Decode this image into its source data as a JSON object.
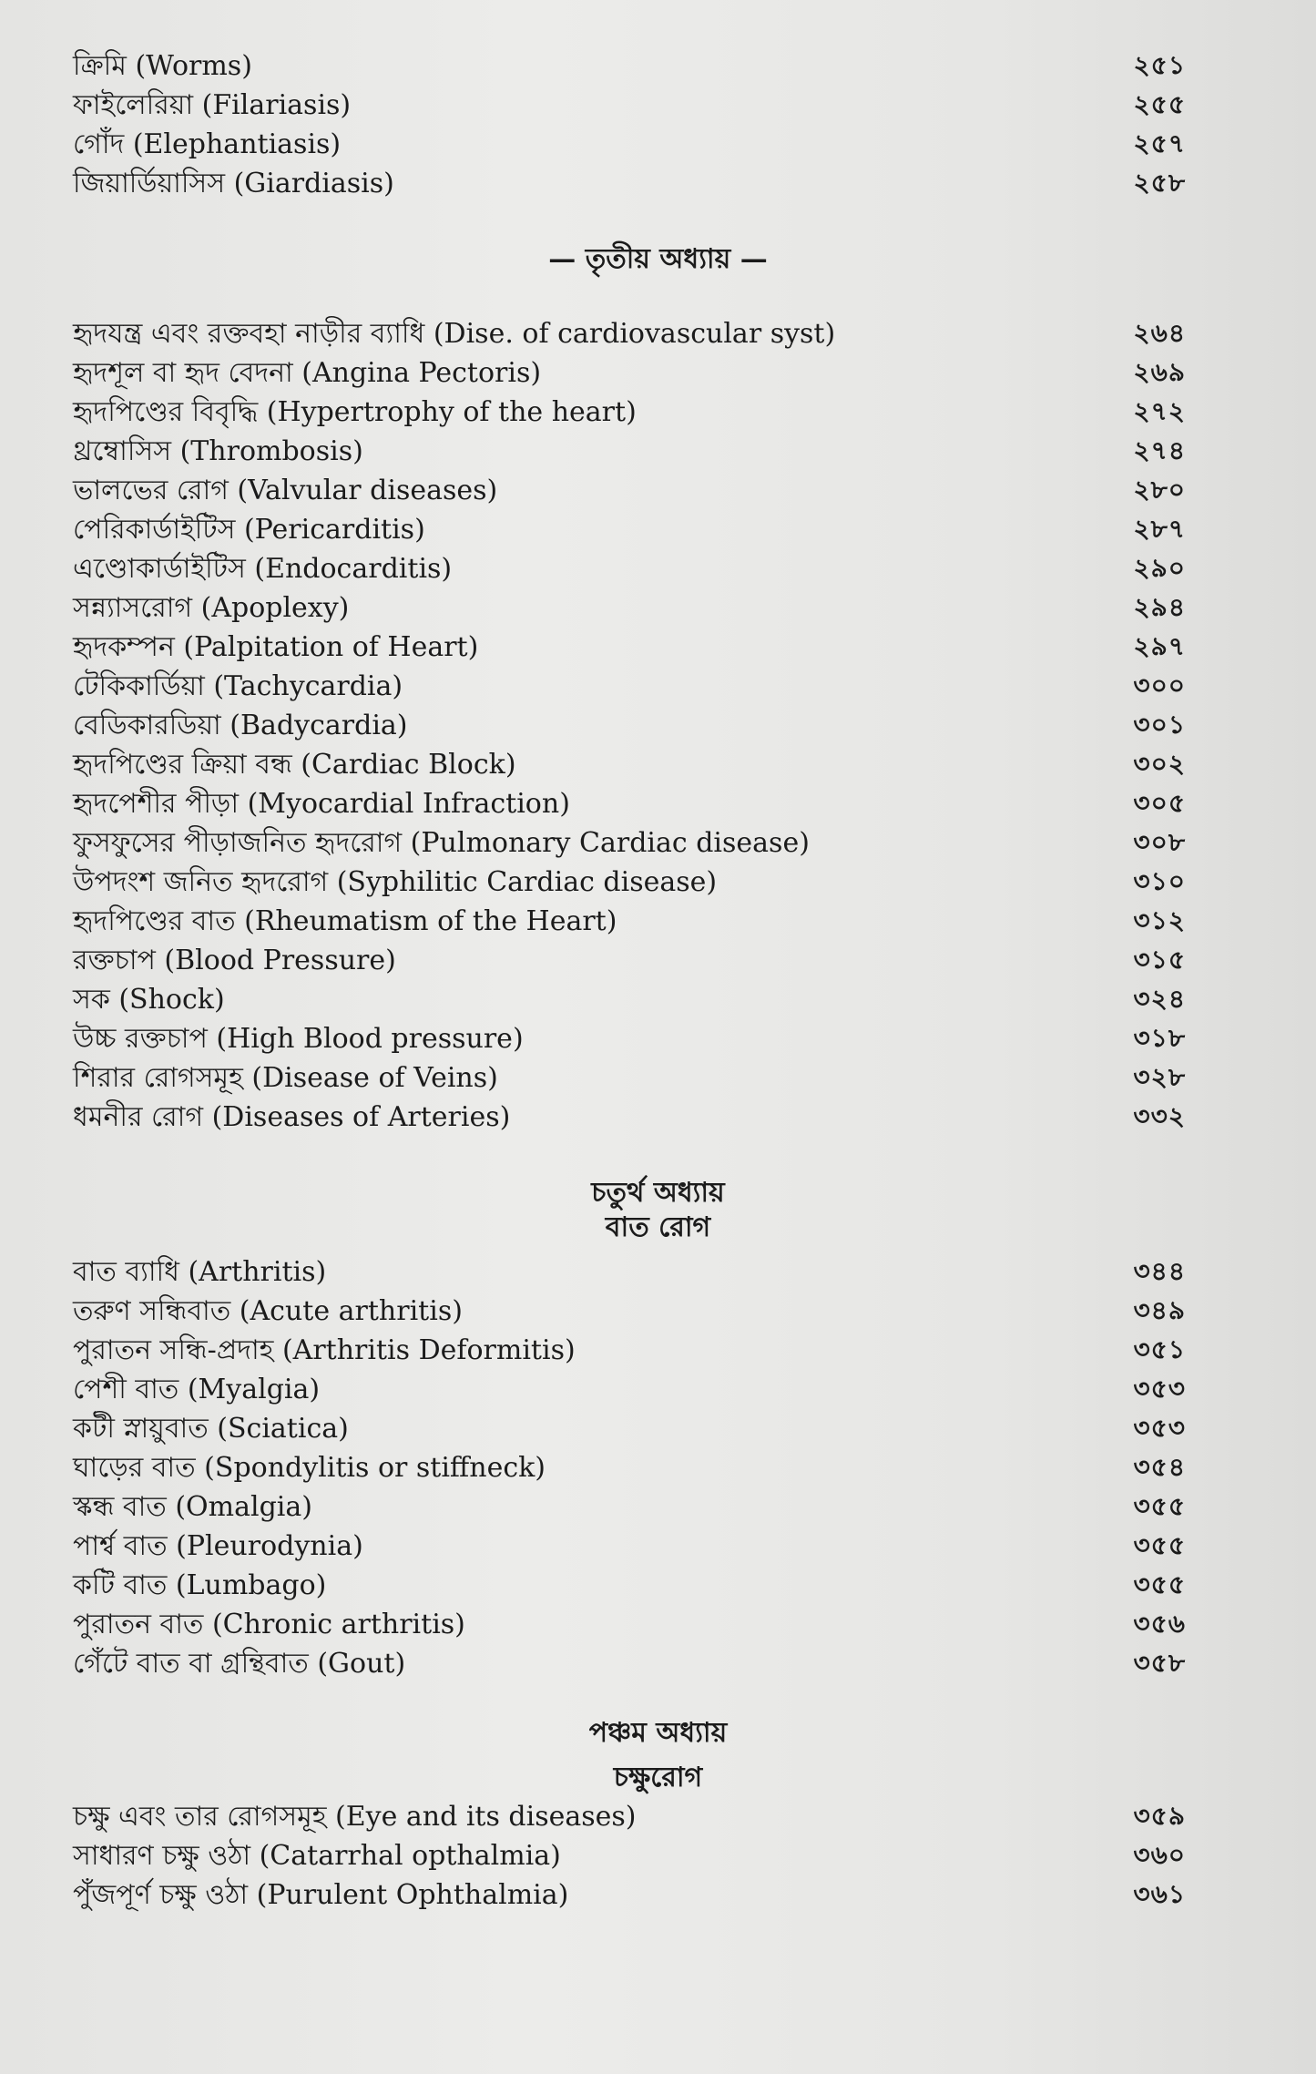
{
  "sections": [
    {
      "heading": [],
      "entries": [
        {
          "title": "ক্রিমি (Worms)",
          "page": "২৫১"
        },
        {
          "title": "ফাইলেরিয়া (Filariasis)",
          "page": "২৫৫"
        },
        {
          "title": "গোঁদ (Elephantiasis)",
          "page": "২৫৭"
        },
        {
          "title": "জিয়ার্ডিয়াসিস (Giardiasis)",
          "page": "২৫৮"
        }
      ]
    },
    {
      "heading": [
        "— তৃতীয় অধ্যায় —"
      ],
      "entries": [
        {
          "title": "হৃদযন্ত্র এবং রক্তবহা নাড়ীর ব্যাধি (Dise. of cardiovascular syst)",
          "page": "২৬৪"
        },
        {
          "title": "হৃদশূল বা হৃদ বেদনা (Angina Pectoris)",
          "page": "২৬৯"
        },
        {
          "title": "হৃদপিণ্ডের বিবৃদ্ধি (Hypertrophy of the heart)",
          "page": "২৭২"
        },
        {
          "title": "থ্রম্বোসিস (Thrombosis)",
          "page": "২৭৪"
        },
        {
          "title": "ভালভের রোগ (Valvular diseases)",
          "page": "২৮০"
        },
        {
          "title": "পেরিকার্ডাইটিস (Pericarditis)",
          "page": "২৮৭"
        },
        {
          "title": "এণ্ডোকার্ডাইটিস (Endocarditis)",
          "page": "২৯০"
        },
        {
          "title": "সন্ন্যাসরোগ (Apoplexy)",
          "page": "২৯৪"
        },
        {
          "title": "হৃদকম্পন (Palpitation of Heart)",
          "page": "২৯৭"
        },
        {
          "title": "টেকিকার্ডিয়া (Tachycardia)",
          "page": "৩০০"
        },
        {
          "title": "বেডিকারডিয়া (Badycardia)",
          "page": "৩০১"
        },
        {
          "title": "হৃদপিণ্ডের ক্রিয়া বন্ধ (Cardiac Block)",
          "page": "৩০২"
        },
        {
          "title": "হৃদপেশীর পীড়া (Myocardial Infraction)",
          "page": "৩০৫"
        },
        {
          "title": "ফুসফুসের পীড়াজনিত হৃদরোগ (Pulmonary Cardiac disease)",
          "page": "৩০৮"
        },
        {
          "title": "উপদংশ জনিত হৃদরোগ (Syphilitic Cardiac disease)",
          "page": "৩১০"
        },
        {
          "title": "হৃদপিণ্ডের বাত (Rheumatism of the Heart)",
          "page": "৩১২"
        },
        {
          "title": "রক্তচাপ (Blood Pressure)",
          "page": "৩১৫"
        },
        {
          "title": "সক (Shock)",
          "page": "৩২৪"
        },
        {
          "title": "উচ্চ রক্তচাপ (High Blood pressure)",
          "page": "৩১৮"
        },
        {
          "title": "শিরার রোগসমূহ (Disease of Veins)",
          "page": "৩২৮"
        },
        {
          "title": "ধমনীর রোগ (Diseases of Arteries)",
          "page": "৩৩২"
        }
      ]
    },
    {
      "heading": [
        "চতুর্থ অধ্যায়",
        "বাত রোগ"
      ],
      "entries": [
        {
          "title": "বাত ব্যাধি (Arthritis)",
          "page": "৩৪৪"
        },
        {
          "title": "তরুণ সন্ধিবাত (Acute arthritis)",
          "page": "৩৪৯"
        },
        {
          "title": "পুরাতন সন্ধি-প্রদাহ (Arthritis Deformitis)",
          "page": "৩৫১"
        },
        {
          "title": "পেশী বাত (Myalgia)",
          "page": "৩৫৩"
        },
        {
          "title": "কটী স্নায়ুবাত (Sciatica)",
          "page": "৩৫৩"
        },
        {
          "title": "ঘাড়ের বাত (Spondylitis or stiffneck)",
          "page": "৩৫৪"
        },
        {
          "title": "স্কন্ধ বাত (Omalgia)",
          "page": "৩৫৫"
        },
        {
          "title": "পার্শ্ব বাত (Pleurodynia)",
          "page": "৩৫৫"
        },
        {
          "title": "কটি বাত (Lumbago)",
          "page": "৩৫৫"
        },
        {
          "title": "পুরাতন বাত (Chronic arthritis)",
          "page": "৩৫৬"
        },
        {
          "title": "গেঁটে বাত বা গ্রন্থিবাত (Gout)",
          "page": "৩৫৮"
        }
      ]
    },
    {
      "heading": [
        "পঞ্চম অধ্যায়",
        "চক্ষুরোগ"
      ],
      "entries": [
        {
          "title": "চক্ষু এবং তার রোগসমূহ (Eye and its diseases)",
          "page": "৩৫৯"
        },
        {
          "title": "সাধারণ চক্ষু ওঠা (Catarrhal opthalmia)",
          "page": "৩৬০"
        },
        {
          "title": "পুঁজপূর্ণ চক্ষু ওঠা (Purulent Ophthalmia)",
          "page": "৩৬১"
        }
      ]
    }
  ]
}
